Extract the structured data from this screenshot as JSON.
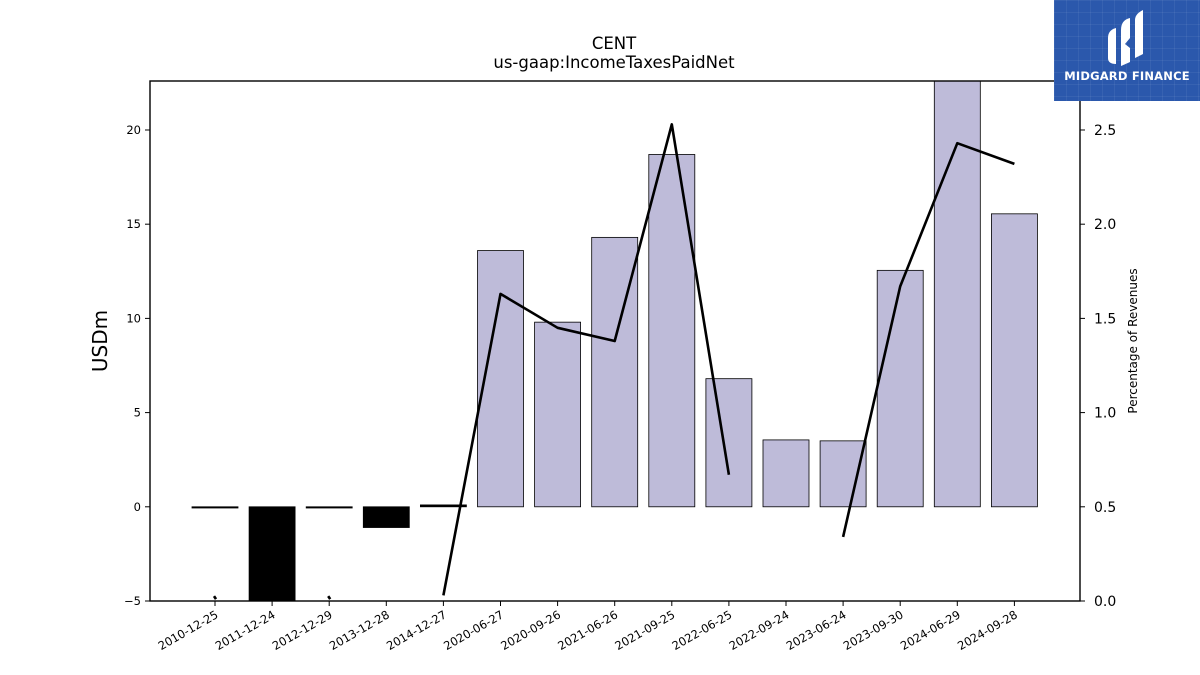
{
  "brand": {
    "name": "MIDGARD FINANCE",
    "bg_color": "#2b58ac",
    "mark_icon": "midgard-logo-icon"
  },
  "chart_data": {
    "type": "bar",
    "title": "CENT",
    "subtitle": "us-gaap:IncomeTaxesPaidNet",
    "ylabel": "USDm",
    "y2label": "Percentage of Revenues",
    "ylim": [
      -5,
      22.6
    ],
    "y2lim": [
      0.0,
      2.76
    ],
    "yticks": [
      -5,
      0,
      5,
      10,
      15,
      20
    ],
    "y2ticks": [
      0.0,
      0.5,
      1.0,
      1.5,
      2.0,
      2.5
    ],
    "categories": [
      "2010-12-25",
      "2011-12-24",
      "2012-12-29",
      "2013-12-28",
      "2014-12-27",
      "2020-06-27",
      "2020-09-26",
      "2021-06-26",
      "2021-09-25",
      "2022-06-25",
      "2022-09-24",
      "2023-06-24",
      "2023-09-30",
      "2024-06-29",
      "2024-09-28"
    ],
    "series": [
      {
        "axis": "left",
        "kind": "bar",
        "values": [
          -0.05,
          -5.0,
          -0.05,
          -1.1,
          0.1,
          13.6,
          9.8,
          14.3,
          18.7,
          6.8,
          3.55,
          3.5,
          12.55,
          22.6,
          15.55
        ]
      },
      {
        "axis": "right",
        "kind": "line",
        "values": [
          0.01,
          null,
          0.01,
          null,
          0.03,
          1.63,
          1.45,
          1.38,
          2.53,
          0.67,
          null,
          0.34,
          1.67,
          2.43,
          2.32
        ]
      }
    ],
    "colors": {
      "positive_bar": "#bebbd9",
      "negative_bar": "#000000",
      "line": "#000000"
    },
    "grid": false,
    "legend": "none"
  }
}
